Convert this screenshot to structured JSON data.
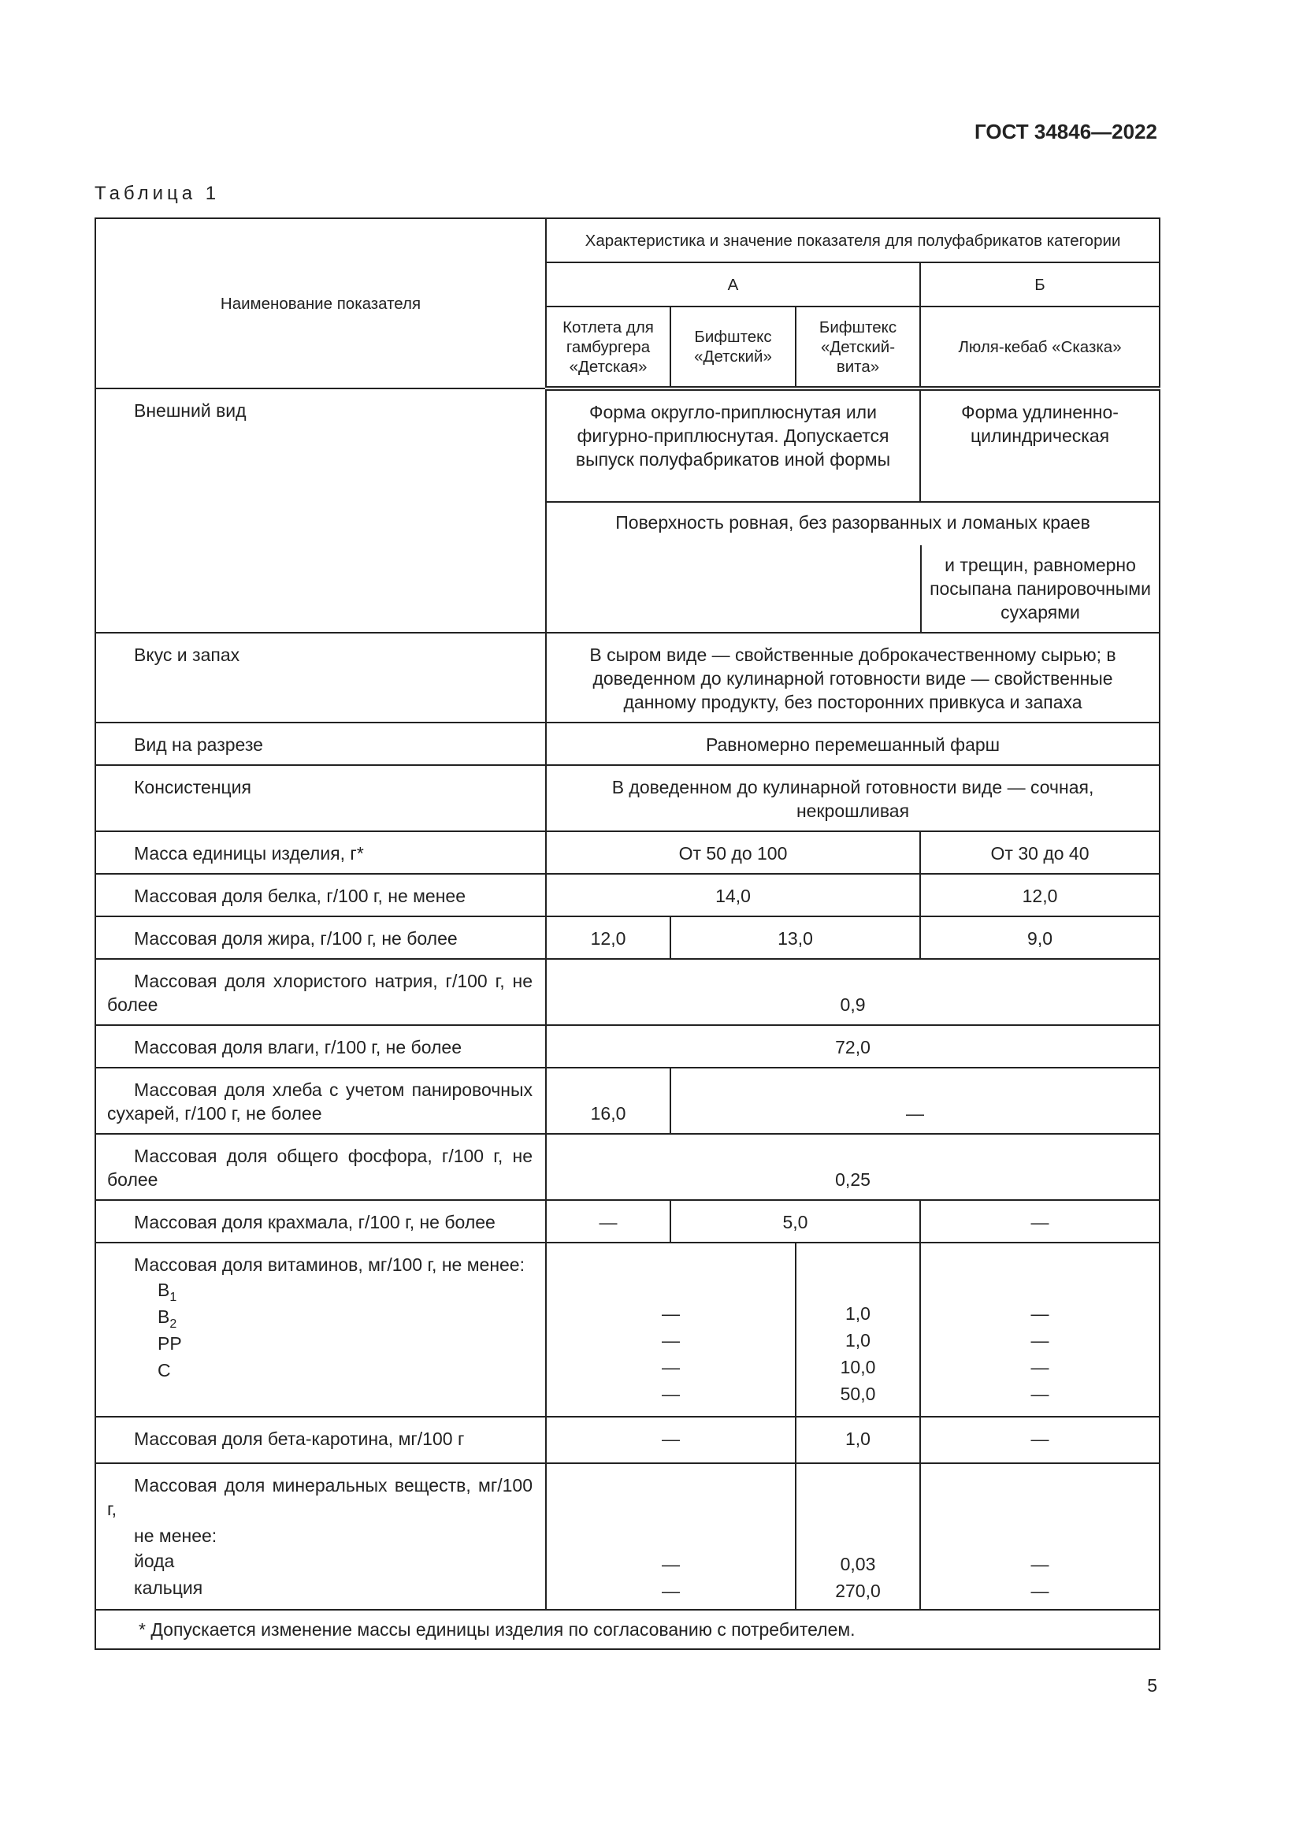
{
  "doc_code": "ГОСТ 34846—2022",
  "table_title": "Таблица 1",
  "page_number": "5",
  "header": {
    "indicator": "Наименование показателя",
    "characteristic": "Характеристика и значение показателя для полуфабрикатов категории",
    "cat_a": "А",
    "cat_b": "Б",
    "products": [
      "Котлета для гамбургера «Детская»",
      "Бифштекс «Детский»",
      "Бифштекс «Детский-вита»",
      "Люля-кебаб «Сказка»"
    ]
  },
  "rows": {
    "appearance": {
      "label": "Внешний вид",
      "a": "Форма округло-приплюснутая или фигурно-приплюснутая. Допускается выпуск полуфабрикатов иной формы",
      "b": "Форма удлиненно-цилиндрическая",
      "surface": "Поверхность ровная, без разорванных и ломаных краев",
      "surface_b": "и трещин, равномерно посыпана панировочными сухарями"
    },
    "taste": {
      "label": "Вкус и запах",
      "value": "В сыром виде — свойственные доброкачественному сырью; в доведенном до кулинарной готовности виде — свойственные данному продукту, без посторонних привкуса и запаха"
    },
    "cut": {
      "label": "Вид на разрезе",
      "value": "Равномерно перемешанный фарш"
    },
    "consistency": {
      "label": "Консистенция",
      "value": "В доведенном до кулинарной готовности виде — сочная, некрошливая"
    },
    "mass": {
      "label": "Масса единицы изделия, г*",
      "a": "От 50 до 100",
      "b": "От 30 до 40"
    },
    "protein": {
      "label": "Массовая доля белка, г/100 г, не менее",
      "a": "14,0",
      "b": "12,0"
    },
    "fat": {
      "label": "Массовая доля жира, г/100 г, не более",
      "a1": "12,0",
      "a23": "13,0",
      "b": "9,0"
    },
    "salt": {
      "label": "Массовая доля хлористого натрия, г/100 г, не более",
      "value": "0,9"
    },
    "moisture": {
      "label": "Массовая доля влаги, г/100 г, не более",
      "value": "72,0"
    },
    "bread": {
      "label": "Массовая доля хлеба с учетом панировочных сухарей, г/100 г, не более",
      "a1": "16,0",
      "rest": "—"
    },
    "phosphorus": {
      "label": "Массовая доля общего фосфора, г/100 г, не более",
      "value": "0,25"
    },
    "starch": {
      "label": "Массовая доля крахмала, г/100 г, не более",
      "a1": "—",
      "a23": "5,0",
      "b": "—"
    },
    "vitamins": {
      "label": "Массовая доля витаминов, мг/100 г, не менее:",
      "items": [
        {
          "name": "B",
          "sub": "1",
          "a12": "—",
          "a3": "1,0",
          "b": "—"
        },
        {
          "name": "B",
          "sub": "2",
          "a12": "—",
          "a3": "1,0",
          "b": "—"
        },
        {
          "name": "PP",
          "sub": "",
          "a12": "—",
          "a3": "10,0",
          "b": "—"
        },
        {
          "name": "C",
          "sub": "",
          "a12": "—",
          "a3": "50,0",
          "b": "—"
        }
      ]
    },
    "carotene": {
      "label": "Массовая доля бета-каротина, мг/100 г",
      "a12": "—",
      "a3": "1,0",
      "b": "—"
    },
    "minerals": {
      "label": "Массовая доля минеральных веществ, мг/100 г,",
      "label2": "не менее:",
      "items": [
        {
          "name": "йода",
          "a12": "—",
          "a3": "0,03",
          "b": "—"
        },
        {
          "name": "кальция",
          "a12": "—",
          "a3": "270,0",
          "b": "—"
        }
      ]
    }
  },
  "footnote": "* Допускается изменение массы единицы изделия по согласованию с потребителем."
}
